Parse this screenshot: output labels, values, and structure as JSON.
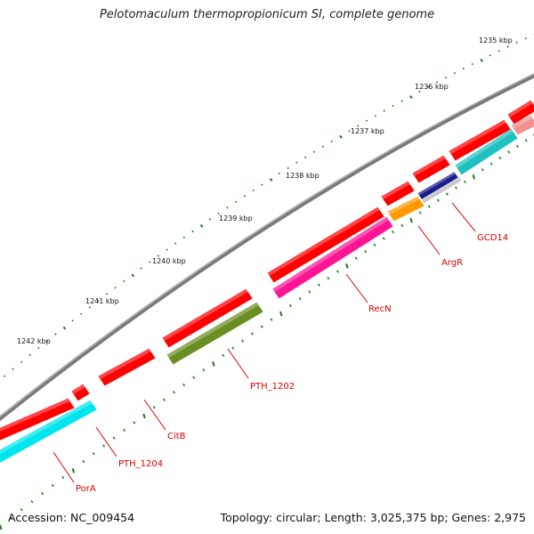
{
  "title": "Pelotomaculum thermopropionicum SI, complete genome",
  "footer": {
    "accession": "Accession: NC_009454",
    "summary": "Topology: circular; Length: 3,025,375 bp; Genes: 2,975"
  },
  "colors": {
    "backbone": "#7a7a7a",
    "tick": "#1a7a1a",
    "label": "#dd0000",
    "cds": "#ff0000"
  },
  "scale_labels": [
    "1235 kbp",
    "1236 kbp",
    "1237 kbp",
    "1238 kbp",
    "1239 kbp",
    "1240 kbp",
    "1241 kbp",
    "1242 kbp"
  ],
  "genes": [
    {
      "name": "GCD14",
      "color": "#1a1a8c"
    },
    {
      "name": "ArgR",
      "color": "#ff9900"
    },
    {
      "name": "RecN",
      "color": "#ff1493"
    },
    {
      "name": "PTH_1202",
      "color": "#6b8e23"
    },
    {
      "name": "CitB",
      "color": ""
    },
    {
      "name": "PTH_1204",
      "color": "#00e5ee"
    },
    {
      "name": "PorA",
      "color": "#00e5ee"
    }
  ],
  "other_features": [
    {
      "name": "cyan feature",
      "color": "#20c0c0"
    },
    {
      "name": "grey feature",
      "color": "#c8c8c8"
    },
    {
      "name": "pink feature",
      "color": "#f09090"
    }
  ]
}
